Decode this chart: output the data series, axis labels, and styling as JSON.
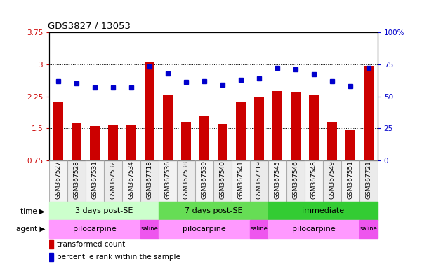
{
  "title": "GDS3827 / 13053",
  "samples": [
    "GSM367527",
    "GSM367528",
    "GSM367531",
    "GSM367532",
    "GSM367534",
    "GSM367718",
    "GSM367536",
    "GSM367538",
    "GSM367539",
    "GSM367540",
    "GSM367541",
    "GSM367719",
    "GSM367545",
    "GSM367546",
    "GSM367548",
    "GSM367549",
    "GSM367551",
    "GSM367721"
  ],
  "bar_values": [
    2.13,
    1.63,
    1.55,
    1.57,
    1.57,
    3.07,
    2.28,
    1.65,
    1.78,
    1.6,
    2.12,
    2.23,
    2.38,
    2.36,
    2.28,
    1.65,
    1.45,
    2.97
  ],
  "dot_values": [
    62,
    60,
    57,
    57,
    57,
    73,
    68,
    61,
    62,
    59,
    63,
    64,
    72,
    71,
    67,
    62,
    58,
    72
  ],
  "bar_color": "#cc0000",
  "dot_color": "#0000cc",
  "ylim_left": [
    0.75,
    3.75
  ],
  "ylim_right": [
    0,
    100
  ],
  "yticks_left": [
    0.75,
    1.5,
    2.25,
    3.0,
    3.75
  ],
  "yticks_right": [
    0,
    25,
    50,
    75,
    100
  ],
  "ytick_labels_left": [
    "0.75",
    "1.5",
    "2.25",
    "3",
    "3.75"
  ],
  "ytick_labels_right": [
    "0",
    "25",
    "50",
    "75",
    "100%"
  ],
  "grid_lines": [
    1.5,
    2.25,
    3.0
  ],
  "time_groups": [
    {
      "label": "3 days post-SE",
      "start": 0,
      "end": 5,
      "color": "#ccffcc"
    },
    {
      "label": "7 days post-SE",
      "start": 6,
      "end": 11,
      "color": "#66dd55"
    },
    {
      "label": "immediate",
      "start": 12,
      "end": 17,
      "color": "#33cc33"
    }
  ],
  "agent_groups": [
    {
      "label": "pilocarpine",
      "start": 0,
      "end": 4,
      "color": "#ff99ff"
    },
    {
      "label": "saline",
      "start": 5,
      "end": 5,
      "color": "#ee55ee"
    },
    {
      "label": "pilocarpine",
      "start": 6,
      "end": 10,
      "color": "#ff99ff"
    },
    {
      "label": "saline",
      "start": 11,
      "end": 11,
      "color": "#ee55ee"
    },
    {
      "label": "pilocarpine",
      "start": 12,
      "end": 16,
      "color": "#ff99ff"
    },
    {
      "label": "saline",
      "start": 17,
      "end": 17,
      "color": "#ee55ee"
    }
  ],
  "time_label": "time",
  "agent_label": "agent",
  "legend_bar": "transformed count",
  "legend_dot": "percentile rank within the sample",
  "bar_width": 0.55,
  "tick_label_color_left": "#cc0000",
  "tick_label_color_right": "#0000cc",
  "figsize": [
    6.11,
    3.84
  ],
  "dpi": 100
}
